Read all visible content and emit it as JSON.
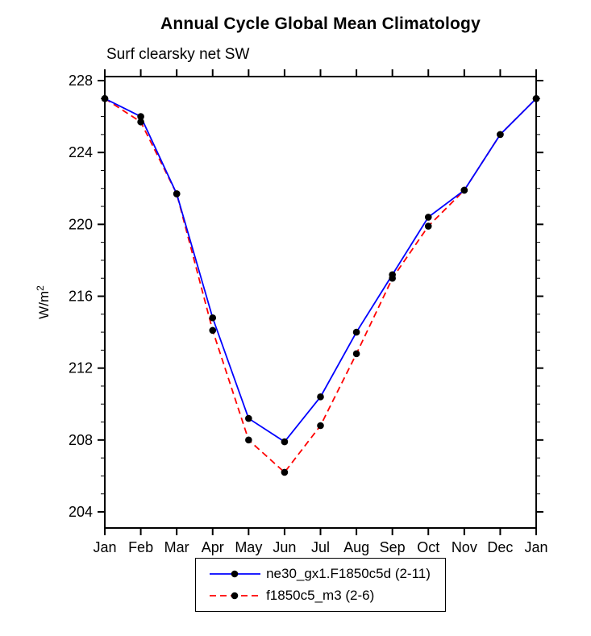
{
  "chart_data": {
    "type": "line",
    "title": "Annual Cycle Global Mean Climatology",
    "subtitle": "Surf clearsky net SW",
    "ylabel": "W/m²",
    "xlabel": "",
    "categories": [
      "Jan",
      "Feb",
      "Mar",
      "Apr",
      "May",
      "Jun",
      "Jul",
      "Aug",
      "Sep",
      "Oct",
      "Nov",
      "Dec",
      "Jan"
    ],
    "ylim": [
      204,
      228
    ],
    "yticks": [
      204,
      208,
      212,
      216,
      220,
      224,
      228
    ],
    "minor_tick_step": 1,
    "grid": false,
    "legend_position": "bottom-center",
    "series": [
      {
        "name": "ne30_gx1.F1850c5d (2-11)",
        "color": "#0000ff",
        "line_style": "solid",
        "marker": "filled-circle",
        "marker_color": "#000000",
        "values": [
          227.0,
          226.0,
          221.7,
          214.8,
          209.2,
          207.9,
          210.4,
          214.0,
          217.2,
          220.4,
          221.9,
          225.0,
          227.0
        ]
      },
      {
        "name": "f1850c5_m3 (2-6)",
        "color": "#ff0000",
        "line_style": "dashed",
        "marker": "filled-circle",
        "marker_color": "#000000",
        "values": [
          227.0,
          225.7,
          221.7,
          214.1,
          208.0,
          206.2,
          208.8,
          212.8,
          217.0,
          219.9,
          221.9,
          225.0,
          227.0
        ]
      }
    ]
  }
}
